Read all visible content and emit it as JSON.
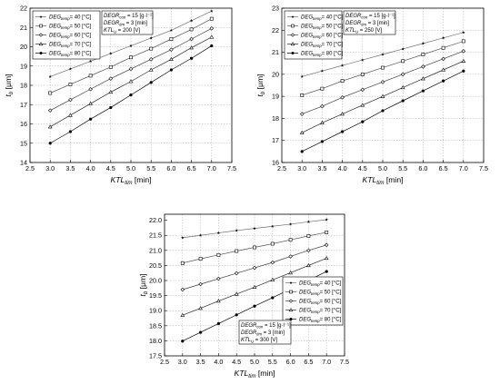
{
  "chart_data": [
    {
      "type": "line",
      "x": [
        3.0,
        3.5,
        4.0,
        4.5,
        5.0,
        5.5,
        6.0,
        6.5,
        7.0
      ],
      "xlabel": "KTLtim [min]",
      "xlabel_main": "KTL",
      "xlabel_sub": "tim",
      "xlabel_unit": "[min]",
      "ylabel": "tb [μm]",
      "ylabel_main": "t",
      "ylabel_sub": "b",
      "ylabel_unit": "[μm]",
      "xlim": [
        2.5,
        7.5
      ],
      "ylim": [
        14,
        22
      ],
      "xticks": [
        "2.5",
        "3.0",
        "3.5",
        "4.0",
        "4.5",
        "5.0",
        "5.5",
        "6.0",
        "6.5",
        "7.0",
        "7.5"
      ],
      "yticks": [
        "14",
        "15",
        "16",
        "17",
        "18",
        "19",
        "20",
        "21",
        "22"
      ],
      "grid": true,
      "legend_placement": "top-left",
      "series": [
        {
          "name": "DEGtemp= 40 [°C]",
          "name_main": "DEG",
          "name_sub": "temp",
          "name_rest": "= 40 [°C]",
          "marker": "star",
          "values": [
            18.45,
            18.85,
            19.25,
            19.65,
            20.05,
            20.45,
            20.85,
            21.35,
            21.85
          ]
        },
        {
          "name": "DEGtemp= 50 [°C]",
          "name_main": "DEG",
          "name_sub": "temp",
          "name_rest": "= 50 [°C]",
          "marker": "square",
          "values": [
            17.6,
            18.05,
            18.5,
            18.95,
            19.45,
            19.9,
            20.4,
            20.9,
            21.45
          ]
        },
        {
          "name": "DEGtemp= 60 [°C]",
          "name_main": "DEG",
          "name_sub": "temp",
          "name_rest": "= 60 [°C]",
          "marker": "diamond",
          "values": [
            16.7,
            17.25,
            17.8,
            18.35,
            18.85,
            19.35,
            19.85,
            20.4,
            20.95
          ]
        },
        {
          "name": "DEGtemp= 70 [°C]",
          "name_main": "DEG",
          "name_sub": "temp",
          "name_rest": "= 70 [°C]",
          "marker": "triangle",
          "values": [
            15.85,
            16.45,
            17.05,
            17.65,
            18.2,
            18.8,
            19.35,
            19.95,
            20.5
          ]
        },
        {
          "name": "DEGtemp= 80 [°C]",
          "name_main": "DEG",
          "name_sub": "temp",
          "name_rest": "= 80 [°C]",
          "marker": "circle",
          "values": [
            15.0,
            15.6,
            16.25,
            16.85,
            17.5,
            18.15,
            18.8,
            19.4,
            20.05
          ]
        }
      ],
      "annotations": [
        {
          "main": "DEGR",
          "sub": "con",
          "rest": " = 15 [g·l⁻¹]"
        },
        {
          "main": "DEGR",
          "sub": "tim",
          "rest": " = 3 [min]"
        },
        {
          "main": "KTL",
          "sub": "U",
          "rest": " = 200 [V]"
        }
      ]
    },
    {
      "type": "line",
      "x": [
        3.0,
        3.5,
        4.0,
        4.5,
        5.0,
        5.5,
        6.0,
        6.5,
        7.0
      ],
      "xlabel": "KTLtim [min]",
      "xlabel_main": "KTL",
      "xlabel_sub": "tim",
      "xlabel_unit": "[min]",
      "ylabel": "tb [μm]",
      "ylabel_main": "t",
      "ylabel_sub": "b",
      "ylabel_unit": "[μm]",
      "xlim": [
        2.5,
        7.5
      ],
      "ylim": [
        16,
        23
      ],
      "xticks": [
        "2.5",
        "3.0",
        "3.5",
        "4.0",
        "4.5",
        "5.0",
        "5.5",
        "6.0",
        "6.5",
        "7.0",
        "7.5"
      ],
      "yticks": [
        "16",
        "17",
        "18",
        "19",
        "20",
        "21",
        "22",
        "23"
      ],
      "grid": true,
      "legend_placement": "top-left",
      "series": [
        {
          "name": "DEGtemp= 40 [°C]",
          "name_main": "DEG",
          "name_sub": "temp",
          "name_rest": "= 40 [°C]",
          "marker": "star",
          "values": [
            19.9,
            20.15,
            20.4,
            20.65,
            20.9,
            21.15,
            21.4,
            21.65,
            21.9
          ]
        },
        {
          "name": "DEGtemp= 50 [°C]",
          "name_main": "DEG",
          "name_sub": "temp",
          "name_rest": "= 50 [°C]",
          "marker": "square",
          "values": [
            19.05,
            19.35,
            19.7,
            20.0,
            20.3,
            20.6,
            20.9,
            21.2,
            21.5
          ]
        },
        {
          "name": "DEGtemp= 60 [°C]",
          "name_main": "DEG",
          "name_sub": "temp",
          "name_rest": "= 60 [°C]",
          "marker": "diamond",
          "values": [
            18.2,
            18.55,
            18.95,
            19.3,
            19.65,
            20.0,
            20.35,
            20.7,
            21.05
          ]
        },
        {
          "name": "DEGtemp= 70 [°C]",
          "name_main": "DEG",
          "name_sub": "temp",
          "name_rest": "= 70 [°C]",
          "marker": "triangle",
          "values": [
            17.35,
            17.8,
            18.2,
            18.6,
            19.0,
            19.4,
            19.8,
            20.2,
            20.6
          ]
        },
        {
          "name": "DEGtemp= 80 [°C]",
          "name_main": "DEG",
          "name_sub": "temp",
          "name_rest": "= 80 [°C]",
          "marker": "circle",
          "values": [
            16.5,
            16.95,
            17.4,
            17.85,
            18.35,
            18.8,
            19.25,
            19.7,
            20.15
          ]
        }
      ],
      "annotations": [
        {
          "main": "DEGR",
          "sub": "con",
          "rest": " = 15 [g·l⁻¹]"
        },
        {
          "main": "DEGR",
          "sub": "tim",
          "rest": " = 3 [min]"
        },
        {
          "main": "KTL",
          "sub": "U",
          "rest": " = 250 [V]"
        }
      ]
    },
    {
      "type": "line",
      "x": [
        3.0,
        3.5,
        4.0,
        4.5,
        5.0,
        5.5,
        6.0,
        6.5,
        7.0
      ],
      "xlabel": "KTLtim [min]",
      "xlabel_main": "KTL",
      "xlabel_sub": "tim",
      "xlabel_unit": "[min]",
      "ylabel": "tb [μm]",
      "ylabel_main": "t",
      "ylabel_sub": "b",
      "ylabel_unit": "[μm]",
      "xlim": [
        2.5,
        7.5
      ],
      "ylim": [
        17.5,
        22.2
      ],
      "xticks": [
        "2.5",
        "3.0",
        "3.5",
        "4.0",
        "4.5",
        "5.0",
        "5.5",
        "6.0",
        "6.5",
        "7.0",
        "7.5"
      ],
      "yticks": [
        "17.5",
        "18.0",
        "18.5",
        "19.0",
        "19.5",
        "20.0",
        "20.5",
        "21.0",
        "21.5",
        "22.0"
      ],
      "ytick_values": [
        17.5,
        18.0,
        18.5,
        19.0,
        19.5,
        20.0,
        20.5,
        21.0,
        21.5,
        22.0
      ],
      "grid": true,
      "legend_placement": "top-right",
      "series": [
        {
          "name": "DEGtemp= 40 [°C]",
          "name_main": "DEG",
          "name_sub": "temp",
          "name_rest": "= 40 [°C]",
          "marker": "star",
          "values": [
            21.42,
            21.5,
            21.58,
            21.66,
            21.73,
            21.8,
            21.87,
            21.95,
            22.02
          ]
        },
        {
          "name": "DEGtemp= 50 [°C]",
          "name_main": "DEG",
          "name_sub": "temp",
          "name_rest": "= 50 [°C]",
          "marker": "square",
          "values": [
            20.58,
            20.72,
            20.85,
            20.98,
            21.1,
            21.22,
            21.35,
            21.48,
            21.6
          ]
        },
        {
          "name": "DEGtemp= 60 [°C]",
          "name_main": "DEG",
          "name_sub": "temp",
          "name_rest": "= 60 [°C]",
          "marker": "diamond",
          "values": [
            19.7,
            19.88,
            20.06,
            20.24,
            20.42,
            20.6,
            20.8,
            21.0,
            21.18
          ]
        },
        {
          "name": "DEGtemp= 70 [°C]",
          "name_main": "DEG",
          "name_sub": "temp",
          "name_rest": "= 70 [°C]",
          "marker": "triangle",
          "values": [
            18.85,
            19.08,
            19.32,
            19.55,
            19.78,
            20.02,
            20.26,
            20.5,
            20.74
          ]
        },
        {
          "name": "DEGtemp= 80 [°C]",
          "name_main": "DEG",
          "name_sub": "temp",
          "name_rest": "= 80 [°C]",
          "marker": "circle",
          "values": [
            17.99,
            18.28,
            18.57,
            18.86,
            19.15,
            19.43,
            19.72,
            20.01,
            20.3
          ]
        }
      ],
      "annotations": [
        {
          "main": "DEGR",
          "sub": "con",
          "rest": " = 15 [g·l⁻¹]"
        },
        {
          "main": "DEGR",
          "sub": "tim",
          "rest": " = 3 [min]"
        },
        {
          "main": "KTL",
          "sub": "U",
          "rest": " = 300 [V]"
        }
      ]
    }
  ]
}
